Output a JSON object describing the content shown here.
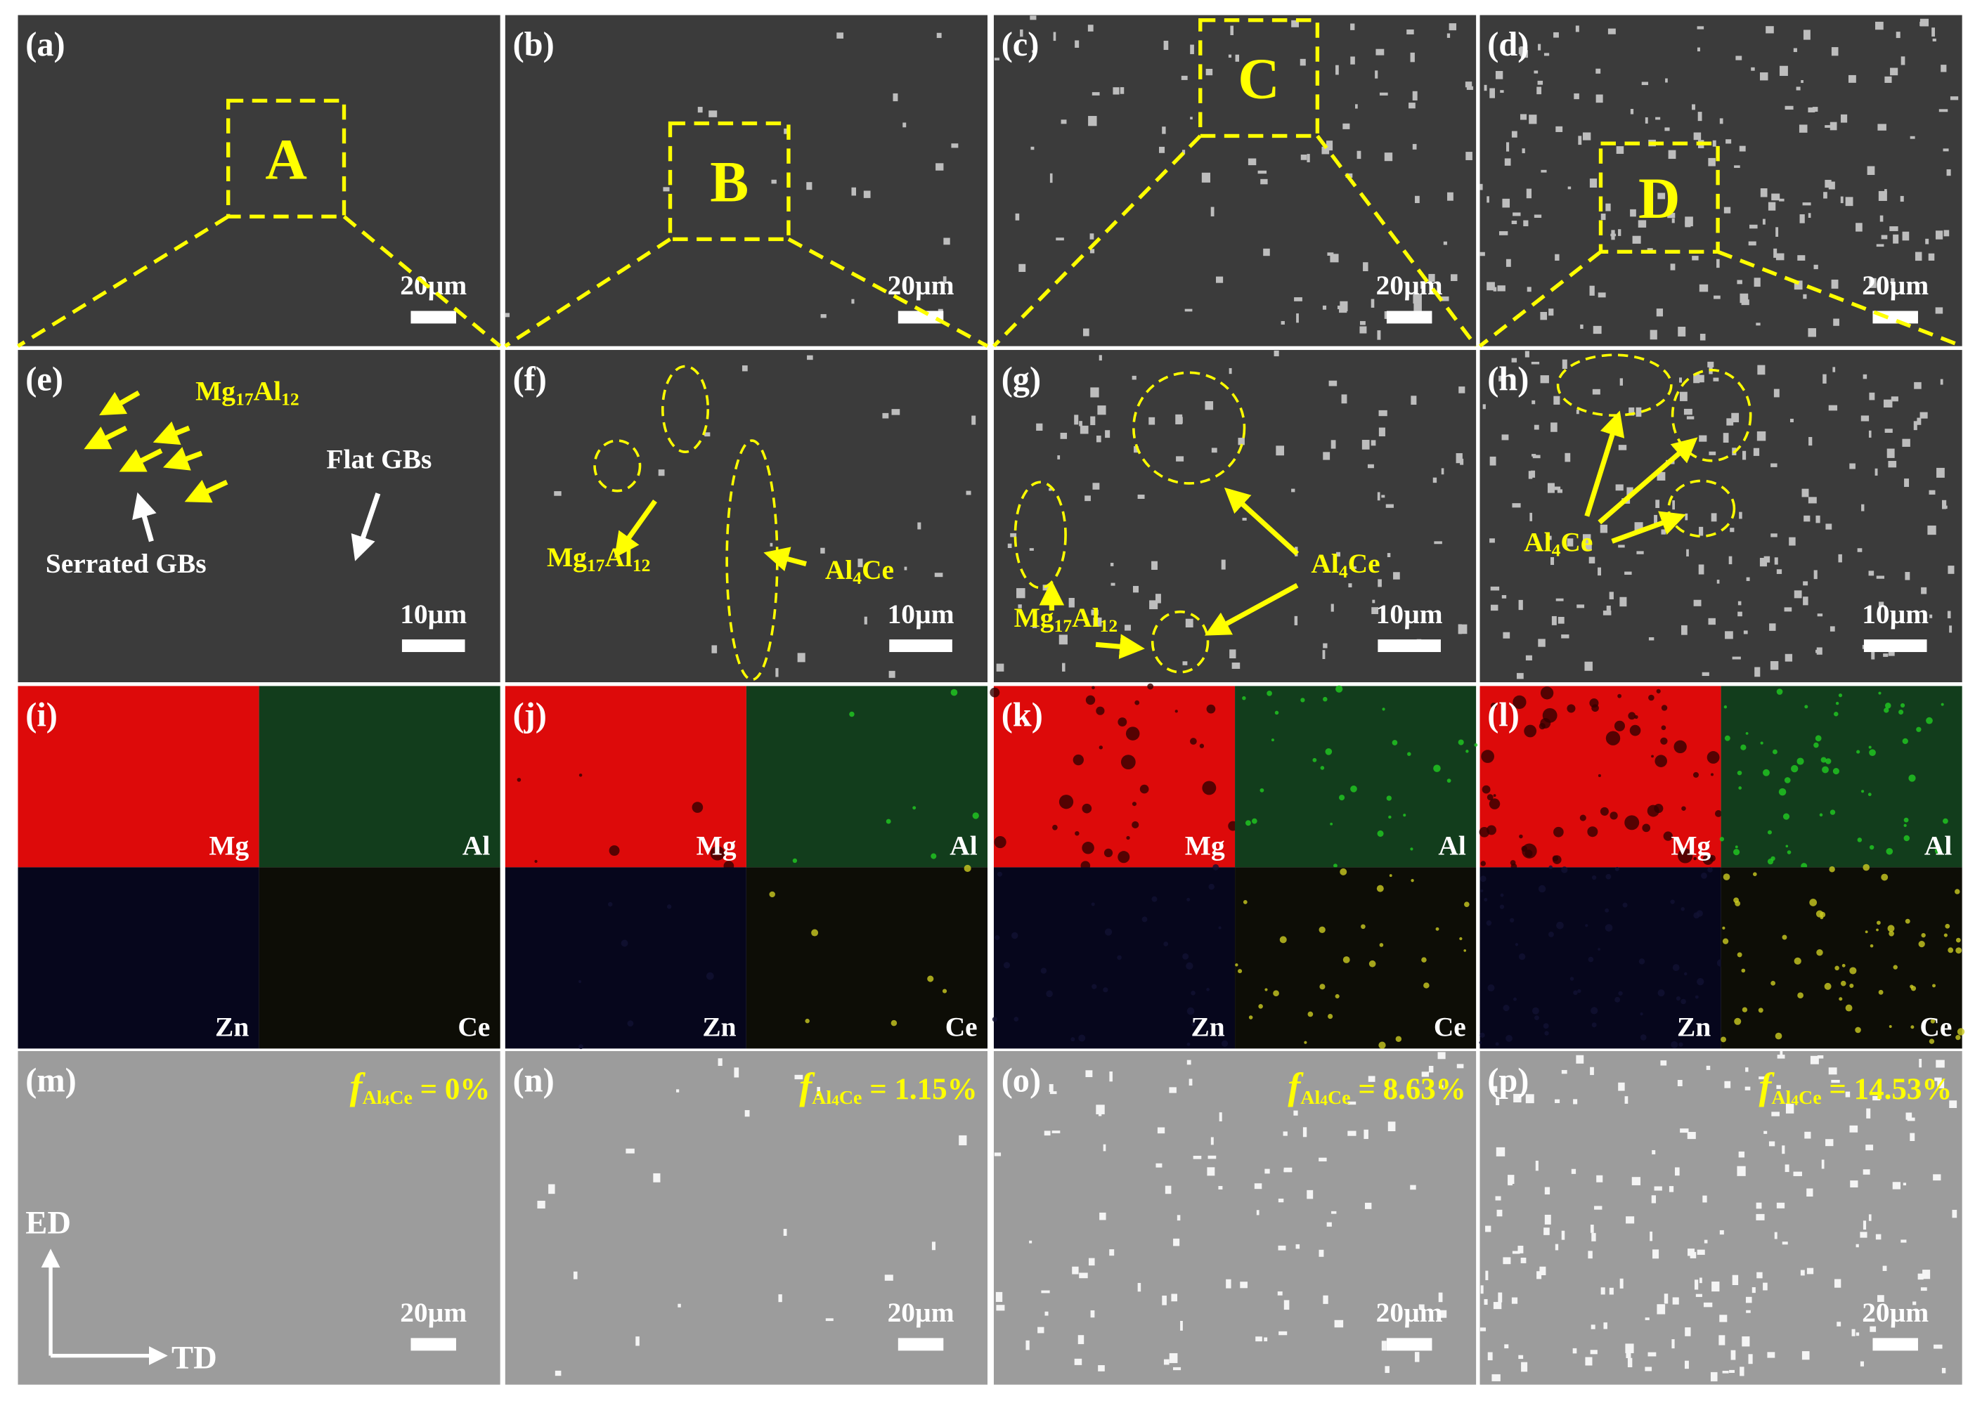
{
  "panels": [
    {
      "label": "(a)",
      "zoom_box": "A",
      "scale_bar": "20µm"
    },
    {
      "label": "(b)",
      "zoom_box": "B",
      "scale_bar": "20µm"
    },
    {
      "label": "(c)",
      "zoom_box": "C",
      "scale_bar": "20µm"
    },
    {
      "label": "(d)",
      "zoom_box": "D",
      "scale_bar": "20µm"
    },
    {
      "label": "(e)",
      "scale_bar": "10µm",
      "annotations": [
        {
          "parts": [
            {
              "text": "Mg"
            },
            {
              "text": "17",
              "style": "sub"
            },
            {
              "text": "Al"
            },
            {
              "text": "12",
              "style": "sub"
            }
          ]
        },
        {
          "parts": [
            {
              "text": "Flat GBs"
            }
          ]
        },
        {
          "parts": [
            {
              "text": "Serrated GBs"
            }
          ]
        }
      ]
    },
    {
      "label": "(f)",
      "scale_bar": "10µm",
      "annotations": [
        {
          "parts": [
            {
              "text": "Mg"
            },
            {
              "text": "17",
              "style": "sub"
            },
            {
              "text": "Al"
            },
            {
              "text": "12",
              "style": "sub"
            }
          ]
        },
        {
          "parts": [
            {
              "text": "Al"
            },
            {
              "text": "4",
              "style": "sub"
            },
            {
              "text": "Ce"
            }
          ]
        }
      ]
    },
    {
      "label": "(g)",
      "scale_bar": "10µm",
      "annotations": [
        {
          "parts": [
            {
              "text": "Al"
            },
            {
              "text": "4",
              "style": "sub"
            },
            {
              "text": "Ce"
            }
          ]
        },
        {
          "parts": [
            {
              "text": "Mg"
            },
            {
              "text": "17",
              "style": "sub"
            },
            {
              "text": "Al"
            },
            {
              "text": "12",
              "style": "sub"
            }
          ]
        }
      ]
    },
    {
      "label": "(h)",
      "scale_bar": "10µm",
      "annotations": [
        {
          "parts": [
            {
              "text": "Al"
            },
            {
              "text": "4",
              "style": "sub"
            },
            {
              "text": "Ce"
            }
          ]
        }
      ]
    },
    {
      "label": "(i)",
      "elements": [
        "Mg",
        "Al",
        "Zn",
        "Ce"
      ]
    },
    {
      "label": "(j)",
      "elements": [
        "Mg",
        "Al",
        "Zn",
        "Ce"
      ]
    },
    {
      "label": "(k)",
      "elements": [
        "Mg",
        "Al",
        "Zn",
        "Ce"
      ]
    },
    {
      "label": "(l)",
      "elements": [
        "Mg",
        "Al",
        "Zn",
        "Ce"
      ]
    },
    {
      "label": "(m)",
      "scale_bar": "20µm",
      "fraction": [
        {
          "text": "f",
          "style": "italic"
        },
        {
          "text": "Al",
          "style": "sub"
        },
        {
          "text": "4",
          "style": "subsub"
        },
        {
          "text": "Ce",
          "style": "sub"
        },
        {
          "text": " = 0%"
        }
      ]
    },
    {
      "label": "(n)",
      "scale_bar": "20µm",
      "fraction": [
        {
          "text": "f",
          "style": "italic"
        },
        {
          "text": "Al",
          "style": "sub"
        },
        {
          "text": "4",
          "style": "subsub"
        },
        {
          "text": "Ce",
          "style": "sub"
        },
        {
          "text": " = 1.15%"
        }
      ]
    },
    {
      "label": "(o)",
      "scale_bar": "20µm",
      "fraction": [
        {
          "text": "f",
          "style": "italic"
        },
        {
          "text": "Al",
          "style": "sub"
        },
        {
          "text": "4",
          "style": "subsub"
        },
        {
          "text": "Ce",
          "style": "sub"
        },
        {
          "text": " = 8.63%"
        }
      ]
    },
    {
      "label": "(p)",
      "scale_bar": "20µm",
      "fraction": [
        {
          "text": "f",
          "style": "italic"
        },
        {
          "text": "Al",
          "style": "sub"
        },
        {
          "text": "4",
          "style": "subsub"
        },
        {
          "text": "Ce",
          "style": "sub"
        },
        {
          "text": " = 14.53%"
        }
      ]
    }
  ],
  "directions": {
    "vertical": "ED",
    "horizontal": "TD"
  }
}
